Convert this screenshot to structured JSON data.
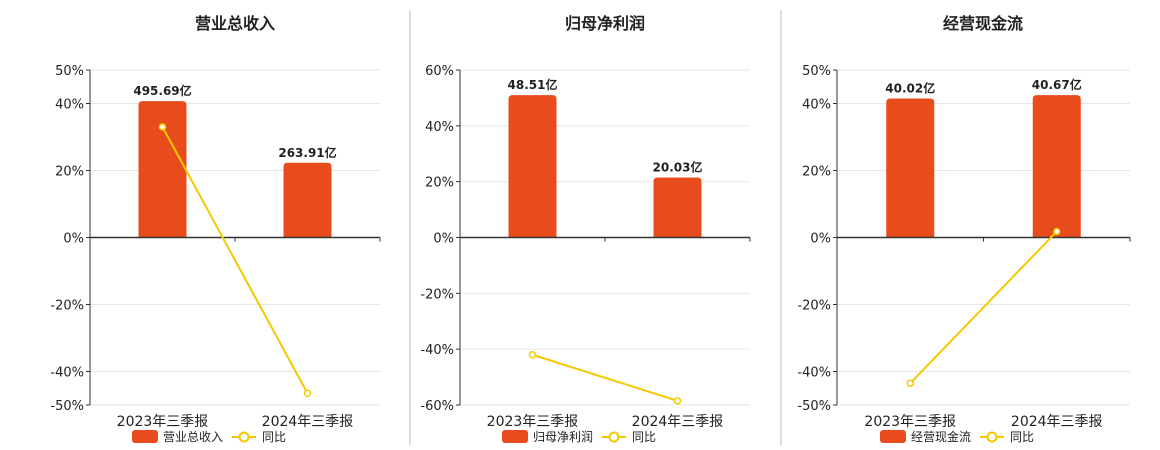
{
  "colors": {
    "bar": "#e84c1c",
    "line": "#f5c800",
    "grid": "#e6e6e6",
    "axis": "#333333",
    "divider": "#bbbbbb"
  },
  "legend_line_label": "同比",
  "chart_data": [
    {
      "type": "bar",
      "title": "营业总收入",
      "categories": [
        "2023年三季报",
        "2024年三季报"
      ],
      "series": [
        {
          "name": "营业总收入",
          "type": "bar",
          "values": [
            40.7,
            22.3
          ],
          "labels": [
            "495.69亿",
            "263.91亿"
          ]
        },
        {
          "name": "同比",
          "type": "line",
          "values": [
            33.0,
            -46.5
          ]
        }
      ],
      "ylim": [
        -50,
        50
      ],
      "yticks": [
        50,
        40,
        20,
        0,
        -20,
        -40,
        -50
      ],
      "ytick_labels": [
        "50%",
        "40%",
        "20%",
        "0%",
        "-20%",
        "-40%",
        "-50%"
      ],
      "legend": "bottom"
    },
    {
      "type": "bar",
      "title": "归母净利润",
      "categories": [
        "2023年三季报",
        "2024年三季报"
      ],
      "series": [
        {
          "name": "归母净利润",
          "type": "bar",
          "values": [
            51.0,
            21.5
          ],
          "labels": [
            "48.51亿",
            "20.03亿"
          ]
        },
        {
          "name": "同比",
          "type": "line",
          "values": [
            -42.0,
            -58.5
          ]
        }
      ],
      "ylim": [
        -60,
        60
      ],
      "yticks": [
        60,
        40,
        20,
        0,
        -20,
        -40,
        -60
      ],
      "ytick_labels": [
        "60%",
        "40%",
        "20%",
        "0%",
        "-20%",
        "-40%",
        "-60%"
      ],
      "legend": "bottom"
    },
    {
      "type": "bar",
      "title": "经营现金流",
      "categories": [
        "2023年三季报",
        "2024年三季报"
      ],
      "series": [
        {
          "name": "经营现金流",
          "type": "bar",
          "values": [
            41.5,
            42.5
          ],
          "labels": [
            "40.02亿",
            "40.67亿"
          ]
        },
        {
          "name": "同比",
          "type": "line",
          "values": [
            -43.5,
            1.8
          ]
        }
      ],
      "ylim": [
        -50,
        50
      ],
      "yticks": [
        50,
        40,
        20,
        0,
        -20,
        -40,
        -50
      ],
      "ytick_labels": [
        "50%",
        "40%",
        "20%",
        "0%",
        "-20%",
        "-40%",
        "-50%"
      ],
      "legend": "bottom"
    }
  ]
}
